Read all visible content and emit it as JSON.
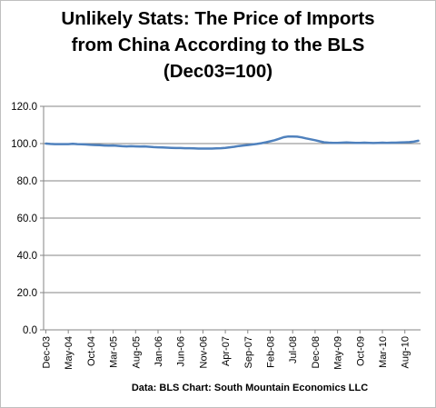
{
  "chart_data": {
    "type": "line",
    "title_lines": [
      "Unlikely Stats: The Price of Imports",
      "from China According to the BLS",
      "(Dec03=100)"
    ],
    "source": "Data: BLS Chart: South Mountain Economics LLC",
    "xlabel": "",
    "ylabel": "",
    "ylim": [
      0,
      120
    ],
    "yticks": [
      "0.0",
      "20.0",
      "40.0",
      "60.0",
      "80.0",
      "100.0",
      "120.0"
    ],
    "x_tick_labels": [
      "Dec-03",
      "May-04",
      "Oct-04",
      "Mar-05",
      "Aug-05",
      "Jan-06",
      "Jun-06",
      "Nov-06",
      "Apr-07",
      "Sep-07",
      "Feb-08",
      "Jul-08",
      "Dec-08",
      "May-09",
      "Oct-09",
      "Mar-10",
      "Aug-10"
    ],
    "grid": "horizontal",
    "line_color": "#4f81bd",
    "series": [
      {
        "values": [
          100.0,
          99.8,
          99.7,
          99.7,
          99.7,
          99.7,
          99.9,
          99.7,
          99.6,
          99.5,
          99.3,
          99.2,
          99.1,
          99.0,
          98.9,
          99.0,
          98.8,
          98.6,
          98.5,
          98.6,
          98.5,
          98.4,
          98.5,
          98.3,
          98.1,
          98.0,
          97.9,
          97.8,
          97.7,
          97.6,
          97.6,
          97.5,
          97.5,
          97.4,
          97.3,
          97.3,
          97.3,
          97.3,
          97.4,
          97.5,
          97.7,
          98.0,
          98.3,
          98.7,
          99.0,
          99.2,
          99.5,
          99.8,
          100.2,
          100.7,
          101.2,
          101.8,
          102.6,
          103.4,
          103.8,
          103.8,
          103.7,
          103.3,
          102.8,
          102.3,
          101.8,
          101.2,
          100.7,
          100.5,
          100.4,
          100.4,
          100.5,
          100.6,
          100.5,
          100.4,
          100.4,
          100.5,
          100.4,
          100.3,
          100.4,
          100.5,
          100.4,
          100.5,
          100.5,
          100.6,
          100.7,
          100.8,
          101.0,
          101.5
        ]
      }
    ]
  }
}
